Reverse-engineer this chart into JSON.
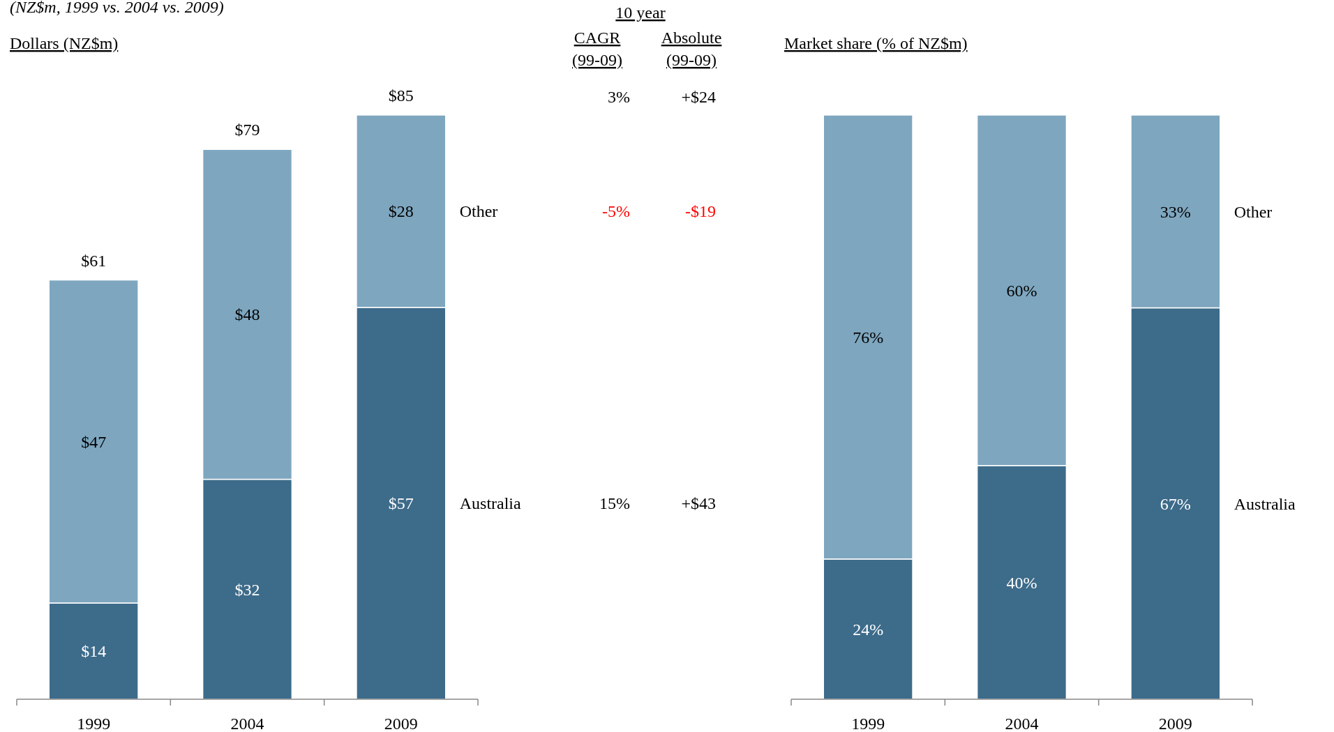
{
  "chart_data": [
    {
      "type": "bar",
      "stacked": true,
      "title": "Dollars (NZ$m)",
      "subtitle": "(NZ$m, 1999 vs. 2004 vs. 2009)",
      "categories": [
        "1999",
        "2004",
        "2009"
      ],
      "series": [
        {
          "name": "Australia",
          "color": "#3d6b8a",
          "values": [
            14,
            32,
            57
          ],
          "value_labels": [
            "$14",
            "$32",
            "$57"
          ]
        },
        {
          "name": "Other",
          "color": "#7ea6bf",
          "values": [
            47,
            48,
            28
          ],
          "value_labels": [
            "$47",
            "$48",
            "$28"
          ]
        }
      ],
      "totals": [
        "$61",
        "$79",
        "$85"
      ],
      "annotations": [
        "10 year",
        "CAGR (99-09)",
        "Absolute (99-09)",
        "3%",
        "+$24",
        "-5%",
        "-$19",
        "15%",
        "+$43"
      ]
    },
    {
      "type": "bar",
      "stacked": true,
      "title": "Market share (% of NZ$m)",
      "categories": [
        "1999",
        "2004",
        "2009"
      ],
      "series": [
        {
          "name": "Australia",
          "color": "#3d6b8a",
          "values": [
            24,
            40,
            67
          ],
          "value_labels": [
            "24%",
            "40%",
            "67%"
          ]
        },
        {
          "name": "Other",
          "color": "#7ea6bf",
          "values": [
            76,
            60,
            33
          ],
          "value_labels": [
            "76%",
            "60%",
            "33%"
          ]
        }
      ]
    }
  ]
}
